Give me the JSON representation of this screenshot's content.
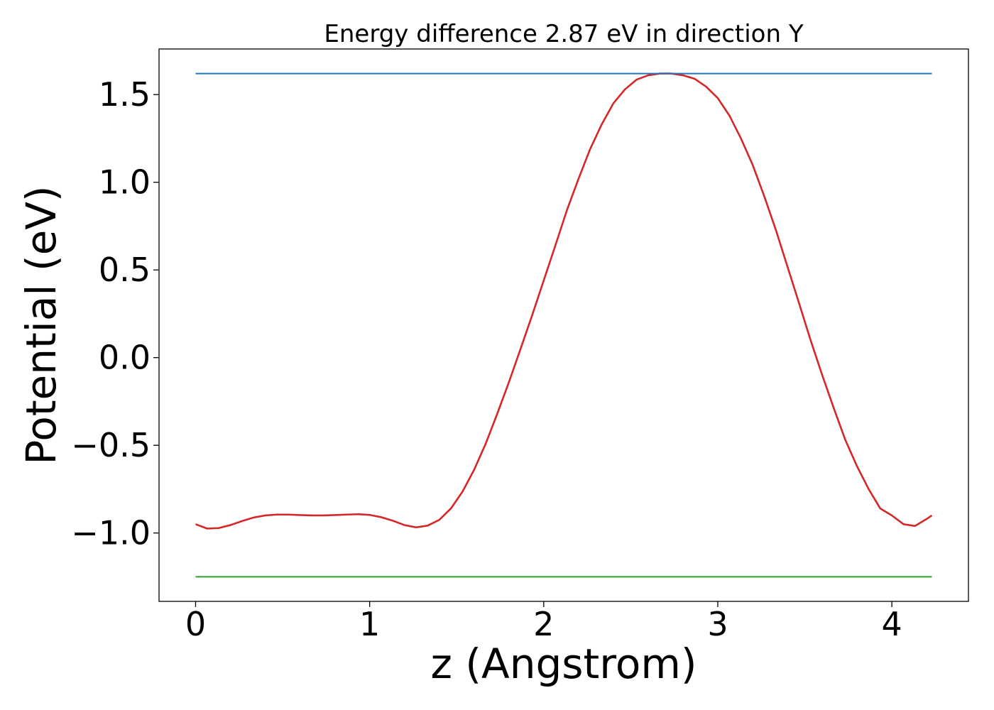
{
  "chart_data": {
    "type": "line",
    "title": "Energy difference 2.87 eV in direction Y",
    "xlabel": "z (Angstrom)",
    "ylabel": "Potential (eV)",
    "xlim": [
      -0.21,
      4.44
    ],
    "ylim": [
      -1.39,
      1.76
    ],
    "grid": false,
    "xticks": [
      0,
      1,
      2,
      3,
      4
    ],
    "xtick_labels": [
      "0",
      "1",
      "2",
      "3",
      "4"
    ],
    "yticks": [
      -1.0,
      -0.5,
      0.0,
      0.5,
      1.0,
      1.5
    ],
    "ytick_labels": [
      "−1.0",
      "−0.5",
      "0.0",
      "0.5",
      "1.0",
      "1.5"
    ],
    "series": [
      {
        "color": "#d62728",
        "x": [
          0.0,
          0.067,
          0.133,
          0.2,
          0.267,
          0.333,
          0.4,
          0.467,
          0.533,
          0.6,
          0.667,
          0.733,
          0.8,
          0.867,
          0.933,
          1.0,
          1.067,
          1.133,
          1.2,
          1.267,
          1.333,
          1.4,
          1.467,
          1.533,
          1.6,
          1.667,
          1.733,
          1.8,
          1.867,
          1.933,
          2.0,
          2.067,
          2.133,
          2.2,
          2.267,
          2.333,
          2.4,
          2.467,
          2.533,
          2.6,
          2.667,
          2.733,
          2.8,
          2.867,
          2.933,
          3.0,
          3.067,
          3.133,
          3.2,
          3.267,
          3.333,
          3.4,
          3.467,
          3.533,
          3.6,
          3.667,
          3.733,
          3.8,
          3.867,
          3.933,
          4.0,
          4.067,
          4.133,
          4.2,
          4.23
        ],
        "y": [
          -0.95,
          -0.975,
          -0.972,
          -0.955,
          -0.932,
          -0.912,
          -0.9,
          -0.895,
          -0.895,
          -0.898,
          -0.9,
          -0.9,
          -0.898,
          -0.895,
          -0.893,
          -0.897,
          -0.91,
          -0.93,
          -0.955,
          -0.968,
          -0.958,
          -0.925,
          -0.86,
          -0.765,
          -0.64,
          -0.49,
          -0.32,
          -0.14,
          0.05,
          0.24,
          0.44,
          0.64,
          0.84,
          1.02,
          1.19,
          1.33,
          1.45,
          1.53,
          1.585,
          1.61,
          1.62,
          1.62,
          1.61,
          1.59,
          1.545,
          1.48,
          1.38,
          1.25,
          1.1,
          0.92,
          0.73,
          0.52,
          0.31,
          0.1,
          -0.1,
          -0.29,
          -0.47,
          -0.62,
          -0.75,
          -0.86,
          -0.9,
          -0.95,
          -0.96,
          -0.92,
          -0.9
        ]
      },
      {
        "color": "#1f77b4",
        "x": [
          0.0,
          4.23
        ],
        "y": [
          1.62,
          1.62
        ]
      },
      {
        "color": "#2ca02c",
        "x": [
          0.0,
          4.23
        ],
        "y": [
          -1.25,
          -1.25
        ]
      }
    ]
  }
}
